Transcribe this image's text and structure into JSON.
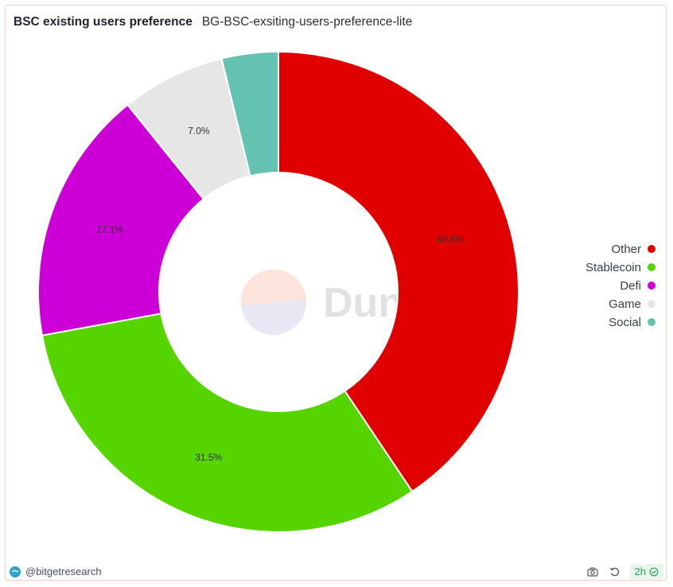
{
  "header": {
    "title": "BSC existing users preference",
    "subtitle": "BG-BSC-exsiting-users-preference-lite"
  },
  "watermark": {
    "text": "Dune"
  },
  "chart_data": {
    "type": "pie",
    "donut": true,
    "slices": [
      {
        "label": "Other",
        "value": 40.6,
        "display": "40.6%",
        "color": "#e00000"
      },
      {
        "label": "Stablecoin",
        "value": 31.5,
        "display": "31.5%",
        "color": "#55d400"
      },
      {
        "label": "Defi",
        "value": 17.1,
        "display": "17.1%",
        "color": "#cc00d6"
      },
      {
        "label": "Game",
        "value": 7.0,
        "display": "7.0%",
        "color": "#e6e6e6"
      },
      {
        "label": "Social",
        "value": 3.8,
        "display": "",
        "color": "#63c2b0"
      }
    ],
    "legend_position": "right"
  },
  "footer": {
    "author": "@bitgetresearch",
    "refresh_badge": "2h",
    "icons": [
      "camera-icon",
      "refresh-icon",
      "check-circle-icon"
    ]
  }
}
